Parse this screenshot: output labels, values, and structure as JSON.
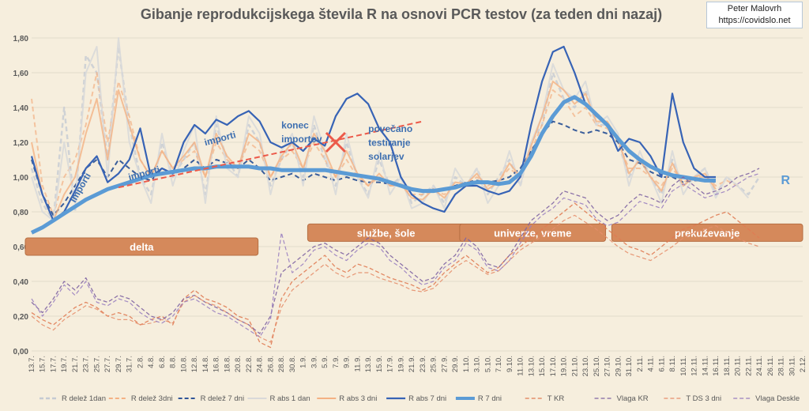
{
  "credit": {
    "author": "Peter Malovrh",
    "site": "https://covidslo.net"
  },
  "colors": {
    "background": "#f6eedd",
    "r_share": "#c5cad3",
    "r_share_dashed": "#2f5597",
    "r_abs": "#d9d9d9",
    "r_abs3": "#f4b183",
    "r_abs7": "#3763b5",
    "r7": "#5b9bd5",
    "temp": "#e07b53",
    "humidity": "#8064a2",
    "band": "#d5895b",
    "import_line": "#ec5a4a"
  },
  "chart_data": {
    "type": "line",
    "title": "Gibanje reprodukcijskega števila R na osnovi PCR testov (za teden dni nazaj)",
    "ylim": [
      0.0,
      1.8
    ],
    "yticks": [
      "0,00",
      "0,20",
      "0,40",
      "0,60",
      "0,80",
      "1,00",
      "1,20",
      "1,40",
      "1,60",
      "1,80"
    ],
    "x_labels": [
      "13.7.",
      "15.7.",
      "17.7.",
      "19.7.",
      "21.7.",
      "23.7.",
      "25.7.",
      "27.7.",
      "29.7.",
      "31.7.",
      "2.8.",
      "4.8.",
      "6.8.",
      "8.8.",
      "10.8.",
      "12.8.",
      "14.8.",
      "16.8.",
      "18.8.",
      "20.8.",
      "22.8.",
      "24.8.",
      "26.8.",
      "28.8.",
      "30.8.",
      "1.9.",
      "3.9.",
      "5.9.",
      "7.9.",
      "9.9.",
      "11.9.",
      "13.9.",
      "15.9.",
      "17.9.",
      "19.9.",
      "21.9.",
      "23.9.",
      "25.9.",
      "27.9.",
      "29.9.",
      "1.10.",
      "3.10.",
      "5.10.",
      "7.10.",
      "9.10.",
      "11.10.",
      "13.10.",
      "15.10.",
      "17.10.",
      "19.10.",
      "21.10.",
      "23.10.",
      "25.10.",
      "27.10.",
      "29.10.",
      "31.10.",
      "2.11.",
      "4.11.",
      "6.11.",
      "8.11.",
      "10.11.",
      "12.11.",
      "14.11.",
      "16.11.",
      "18.11.",
      "20.11.",
      "22.11.",
      "24.11.",
      "26.11.",
      "28.11.",
      "30.11.",
      "2.12."
    ],
    "series": [
      {
        "name": "R delež 1dan",
        "style": "dashed-light",
        "values": [
          1.05,
          0.85,
          0.75,
          1.4,
          0.8,
          1.7,
          1.6,
          1.1,
          1.75,
          1.3,
          1.0,
          0.9,
          1.2,
          1.0,
          1.1,
          1.2,
          0.9,
          1.3,
          1.1,
          1.0,
          1.3,
          1.2,
          0.95,
          1.1,
          1.2,
          1.0,
          1.3,
          1.1,
          0.95,
          1.2,
          1.0,
          0.9,
          1.1,
          0.95,
          1.0,
          0.85,
          0.9,
          0.95,
          0.85,
          1.0,
          0.95,
          1.05,
          0.9,
          1.0,
          1.1,
          0.95,
          1.2,
          1.3,
          1.6,
          1.45,
          1.4,
          1.5,
          1.3,
          1.3,
          1.2,
          1.0,
          1.1,
          1.0,
          0.9,
          1.1,
          0.95,
          1.0,
          1.05,
          0.9,
          1.0,
          0.95,
          0.9,
          1.0,
          null,
          null,
          null,
          null
        ]
      },
      {
        "name": "R delež 3dni",
        "style": "dashed-peach",
        "values": [
          1.45,
          0.95,
          0.78,
          1.0,
          1.1,
          1.3,
          1.6,
          1.2,
          1.55,
          1.35,
          1.1,
          1.0,
          1.15,
          1.05,
          1.1,
          1.15,
          1.0,
          1.2,
          1.1,
          1.05,
          1.2,
          1.15,
          1.0,
          1.1,
          1.15,
          1.05,
          1.2,
          1.1,
          1.0,
          1.1,
          1.0,
          0.95,
          1.0,
          0.95,
          0.95,
          0.9,
          0.9,
          0.92,
          0.9,
          0.95,
          0.95,
          1.0,
          0.95,
          0.98,
          1.05,
          1.0,
          1.15,
          1.3,
          1.5,
          1.45,
          1.35,
          1.4,
          1.3,
          1.28,
          1.2,
          1.05,
          1.05,
          1.0,
          0.95,
          1.05,
          0.97,
          1.0,
          1.0,
          0.95,
          0.98,
          0.95,
          null,
          null,
          null,
          null,
          null,
          null
        ]
      },
      {
        "name": "R delež 7 dni",
        "style": "dashed-blue",
        "values": [
          1.1,
          0.9,
          0.78,
          0.85,
          0.95,
          1.05,
          1.1,
          1.0,
          1.1,
          1.05,
          1.0,
          0.98,
          1.05,
          1.02,
          1.05,
          1.1,
          1.05,
          1.1,
          1.08,
          1.05,
          1.1,
          1.05,
          0.98,
          1.0,
          1.02,
          0.98,
          1.02,
          1.0,
          0.98,
          1.0,
          0.98,
          0.97,
          0.97,
          0.96,
          0.95,
          0.93,
          0.92,
          0.93,
          0.93,
          0.95,
          0.97,
          0.98,
          0.97,
          0.98,
          1.0,
          1.05,
          1.15,
          1.25,
          1.32,
          1.3,
          1.27,
          1.25,
          1.27,
          1.25,
          1.2,
          1.1,
          1.08,
          1.03,
          1.0,
          1.0,
          0.97,
          0.98,
          0.98,
          0.97,
          null,
          null,
          null,
          null,
          null,
          null,
          null,
          null
        ]
      },
      {
        "name": "R abs 1 dan",
        "style": "solid-light",
        "values": [
          1.0,
          0.8,
          0.75,
          1.2,
          0.85,
          1.6,
          1.75,
          1.0,
          1.8,
          1.2,
          1.0,
          0.85,
          1.25,
          0.95,
          1.15,
          1.3,
          0.85,
          1.35,
          1.05,
          1.0,
          1.35,
          1.25,
          0.9,
          1.15,
          1.25,
          0.95,
          1.35,
          1.15,
          0.9,
          1.25,
          1.0,
          0.88,
          1.15,
          0.9,
          1.0,
          0.82,
          0.85,
          0.95,
          0.82,
          1.05,
          0.95,
          1.05,
          0.85,
          0.95,
          1.15,
          0.95,
          1.2,
          1.35,
          1.65,
          1.5,
          1.45,
          1.55,
          1.3,
          1.35,
          1.25,
          0.95,
          1.15,
          1.0,
          0.85,
          1.15,
          0.9,
          1.0,
          1.05,
          0.88,
          1.0,
          0.95,
          0.88,
          null,
          null,
          null,
          null,
          null
        ]
      },
      {
        "name": "R abs 3 dni",
        "style": "solid-peach",
        "values": [
          1.2,
          0.9,
          0.75,
          0.9,
          1.0,
          1.25,
          1.45,
          1.1,
          1.5,
          1.3,
          1.1,
          1.0,
          1.15,
          1.05,
          1.12,
          1.2,
          1.0,
          1.25,
          1.12,
          1.05,
          1.25,
          1.2,
          1.0,
          1.12,
          1.2,
          1.05,
          1.25,
          1.15,
          1.0,
          1.15,
          1.02,
          0.95,
          1.02,
          0.95,
          0.96,
          0.88,
          0.87,
          0.93,
          0.88,
          0.97,
          0.96,
          1.02,
          0.93,
          0.97,
          1.08,
          1.0,
          1.18,
          1.35,
          1.55,
          1.5,
          1.42,
          1.48,
          1.32,
          1.32,
          1.22,
          1.02,
          1.1,
          1.0,
          0.92,
          1.08,
          0.95,
          1.0,
          1.02,
          0.93,
          null,
          null,
          null,
          null,
          null,
          null,
          null,
          null
        ]
      },
      {
        "name": "R abs 7 dni",
        "style": "solid-blue",
        "values": [
          1.12,
          0.9,
          0.75,
          0.8,
          0.92,
          1.05,
          1.12,
          0.97,
          1.02,
          1.1,
          1.28,
          1.0,
          1.05,
          1.02,
          1.2,
          1.3,
          1.25,
          1.33,
          1.3,
          1.35,
          1.38,
          1.32,
          1.2,
          1.17,
          1.2,
          1.15,
          1.22,
          1.18,
          1.35,
          1.45,
          1.48,
          1.42,
          1.28,
          1.2,
          1.0,
          0.9,
          0.85,
          0.82,
          0.8,
          0.9,
          0.95,
          0.95,
          0.92,
          0.9,
          0.92,
          1.0,
          1.3,
          1.55,
          1.72,
          1.75,
          1.6,
          1.42,
          1.35,
          1.3,
          1.15,
          1.22,
          1.2,
          1.12,
          1.0,
          1.48,
          1.2,
          1.05,
          1.0,
          1.0,
          null,
          null,
          null,
          null,
          null,
          null,
          null,
          null
        ]
      },
      {
        "name": "R 7 dni",
        "style": "solid-thick",
        "values": [
          0.68,
          0.71,
          0.75,
          0.79,
          0.83,
          0.87,
          0.9,
          0.93,
          0.95,
          0.97,
          0.99,
          1.01,
          1.02,
          1.03,
          1.04,
          1.05,
          1.05,
          1.06,
          1.06,
          1.06,
          1.06,
          1.05,
          1.05,
          1.04,
          1.04,
          1.04,
          1.04,
          1.04,
          1.03,
          1.02,
          1.01,
          1.0,
          0.99,
          0.97,
          0.95,
          0.93,
          0.92,
          0.92,
          0.93,
          0.94,
          0.96,
          0.97,
          0.97,
          0.96,
          0.97,
          1.02,
          1.12,
          1.25,
          1.35,
          1.43,
          1.46,
          1.42,
          1.36,
          1.3,
          1.22,
          1.15,
          1.1,
          1.06,
          1.03,
          1.01,
          1.0,
          0.99,
          0.98,
          0.98,
          null,
          null,
          null,
          null,
          null,
          null,
          null,
          null
        ]
      },
      {
        "name": "T KR",
        "style": "dashed-orange",
        "values": [
          0.22,
          0.18,
          0.15,
          0.2,
          0.25,
          0.28,
          0.25,
          0.2,
          0.22,
          0.2,
          0.15,
          0.18,
          0.2,
          0.15,
          0.3,
          0.35,
          0.3,
          0.28,
          0.25,
          0.2,
          0.18,
          0.05,
          0.02,
          0.3,
          0.4,
          0.45,
          0.5,
          0.55,
          0.48,
          0.45,
          0.5,
          0.48,
          0.45,
          0.42,
          0.4,
          0.38,
          0.35,
          0.38,
          0.45,
          0.5,
          0.55,
          0.5,
          0.45,
          0.48,
          0.55,
          0.6,
          0.65,
          0.7,
          0.75,
          0.8,
          0.85,
          0.8,
          0.75,
          0.7,
          0.65,
          0.6,
          0.58,
          0.55,
          0.6,
          0.65,
          0.7,
          0.72,
          0.75,
          0.78,
          0.8,
          0.75,
          0.7,
          0.65,
          null,
          null,
          null,
          null
        ]
      },
      {
        "name": "Vlaga KR",
        "style": "dashed-purple",
        "values": [
          0.28,
          0.22,
          0.3,
          0.4,
          0.35,
          0.42,
          0.3,
          0.28,
          0.32,
          0.3,
          0.25,
          0.2,
          0.18,
          0.22,
          0.3,
          0.32,
          0.28,
          0.25,
          0.22,
          0.18,
          0.15,
          0.1,
          0.2,
          0.45,
          0.5,
          0.55,
          0.6,
          0.62,
          0.58,
          0.55,
          0.6,
          0.65,
          0.62,
          0.55,
          0.5,
          0.45,
          0.4,
          0.42,
          0.5,
          0.55,
          0.65,
          0.6,
          0.5,
          0.48,
          0.55,
          0.65,
          0.75,
          0.8,
          0.85,
          0.92,
          0.9,
          0.88,
          0.8,
          0.75,
          0.78,
          0.85,
          0.9,
          0.88,
          0.85,
          0.95,
          1.0,
          0.95,
          0.9,
          0.92,
          0.95,
          1.0,
          1.02,
          1.05,
          null,
          null,
          null,
          null
        ]
      },
      {
        "name": "T DS 3 dni",
        "style": "dashed-orange2",
        "values": [
          0.2,
          0.15,
          0.12,
          0.18,
          0.22,
          0.26,
          0.24,
          0.2,
          0.18,
          0.18,
          0.15,
          0.16,
          0.18,
          0.16,
          0.28,
          0.32,
          0.28,
          0.26,
          0.22,
          0.18,
          0.15,
          0.08,
          0.05,
          0.25,
          0.35,
          0.4,
          0.45,
          0.5,
          0.45,
          0.42,
          0.45,
          0.45,
          0.42,
          0.4,
          0.38,
          0.35,
          0.34,
          0.36,
          0.42,
          0.48,
          0.52,
          0.48,
          0.44,
          0.46,
          0.52,
          0.58,
          0.62,
          0.66,
          0.7,
          0.75,
          0.78,
          0.74,
          0.7,
          0.65,
          0.6,
          0.56,
          0.54,
          0.52,
          0.56,
          0.6,
          0.65,
          0.68,
          0.7,
          0.72,
          0.68,
          0.65,
          0.62,
          0.6,
          null,
          null,
          null,
          null
        ]
      },
      {
        "name": "Vlaga Deskle",
        "style": "dashed-purple2",
        "values": [
          0.3,
          0.2,
          0.28,
          0.38,
          0.32,
          0.4,
          0.28,
          0.26,
          0.3,
          0.28,
          0.22,
          0.18,
          0.16,
          0.2,
          0.28,
          0.3,
          0.26,
          0.22,
          0.2,
          0.16,
          0.12,
          0.08,
          0.18,
          0.68,
          0.45,
          0.5,
          0.58,
          0.6,
          0.55,
          0.52,
          0.58,
          0.62,
          0.6,
          0.52,
          0.48,
          0.42,
          0.38,
          0.4,
          0.48,
          0.52,
          0.62,
          0.58,
          0.48,
          0.46,
          0.52,
          0.62,
          0.72,
          0.78,
          0.82,
          0.88,
          0.86,
          0.84,
          0.76,
          0.72,
          0.74,
          0.8,
          0.86,
          0.84,
          0.82,
          0.92,
          0.96,
          0.92,
          0.88,
          0.9,
          0.92,
          0.96,
          1.0,
          1.02,
          null,
          null,
          null,
          null
        ]
      }
    ],
    "annotations": [
      {
        "text": "importi",
        "x_index": 4,
        "y": 0.85,
        "rotate": -60
      },
      {
        "text": "importi",
        "x_index": 9,
        "y": 0.98,
        "rotate": -15
      },
      {
        "text": "importi",
        "x_index": 16,
        "y": 1.18,
        "rotate": -15
      },
      {
        "text": "konec",
        "x_index": 23,
        "y": 1.28,
        "rotate": 0
      },
      {
        "text": "importov",
        "x_index": 23,
        "y": 1.2,
        "rotate": 0
      },
      {
        "text": "povečano",
        "x_index": 31,
        "y": 1.26,
        "rotate": 0
      },
      {
        "text": "testiranje",
        "x_index": 31,
        "y": 1.18,
        "rotate": 0
      },
      {
        "text": "solarjev",
        "x_index": 31,
        "y": 1.1,
        "rotate": 0
      },
      {
        "text": "R",
        "x_index": 69,
        "y": 0.96,
        "rotate": 0
      }
    ],
    "bands": [
      {
        "label": "delta",
        "from_index": 0,
        "to_index": 21,
        "y": 0.6
      },
      {
        "label": "službe, šole",
        "from_index": 26,
        "to_index": 40,
        "y": 0.68
      },
      {
        "label": "univerze, vreme",
        "from_index": 40,
        "to_index": 53,
        "y": 0.68
      },
      {
        "label": "prekuževanje",
        "from_index": 54,
        "to_index": 71,
        "y": 0.68
      }
    ],
    "import_trend": {
      "from_index": 8,
      "to_index": 36,
      "from_y": 0.94,
      "to_y": 1.32
    },
    "cross_marker": {
      "x_index": 28,
      "y": 1.2
    },
    "legend": [
      "R delež 1dan",
      "R delež 3dni",
      "R delež 7 dni",
      "R abs 1 dan",
      "R abs 3 dni",
      "R abs 7 dni",
      "R 7 dni",
      "T KR",
      "Vlaga KR",
      "T DS 3 dni",
      "Vlaga Deskle"
    ]
  }
}
